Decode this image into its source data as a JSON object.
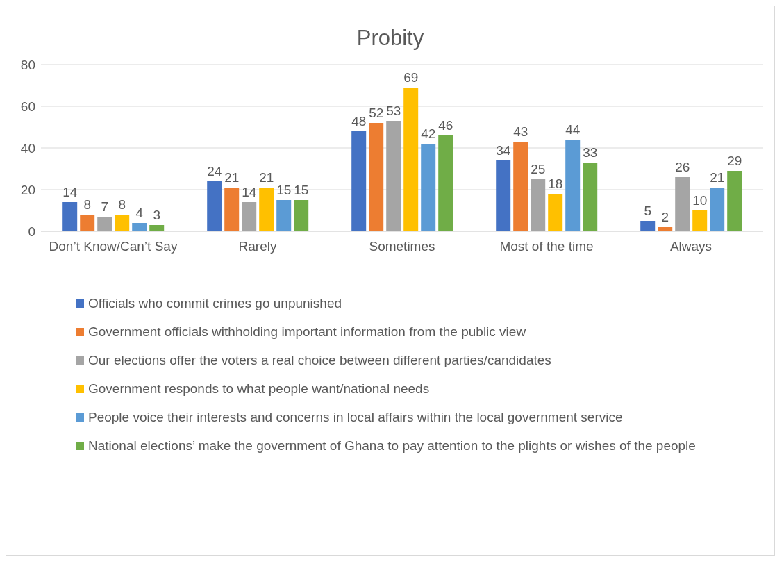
{
  "chart_data": {
    "type": "bar",
    "title": "Probity",
    "categories": [
      "Don’t Know/Can’t Say",
      "Rarely",
      "Sometimes",
      "Most of the time",
      "Always"
    ],
    "series": [
      {
        "name": "Officials who commit crimes go unpunished",
        "color": "#4472c4",
        "values": [
          14,
          24,
          48,
          34,
          5
        ]
      },
      {
        "name": "Government officials withholding important information from the public view",
        "color": "#ed7d31",
        "values": [
          8,
          21,
          52,
          43,
          2
        ]
      },
      {
        "name": "Our elections offer the voters a real choice between different parties/candidates",
        "color": "#a5a5a5",
        "values": [
          7,
          14,
          53,
          25,
          26
        ]
      },
      {
        "name": "Government responds to what people want/national needs",
        "color": "#ffc000",
        "values": [
          8,
          21,
          69,
          18,
          10
        ]
      },
      {
        "name": "People voice their interests and concerns in local affairs within the local government service",
        "color": "#5b9bd5",
        "values": [
          4,
          15,
          42,
          44,
          21
        ]
      },
      {
        "name": "National elections’ make the government of Ghana to pay attention to the plights or wishes of the people",
        "color": "#70ad47",
        "values": [
          3,
          15,
          46,
          33,
          29
        ]
      }
    ],
    "ylim": [
      0,
      80
    ],
    "yticks": [
      0,
      20,
      40,
      60,
      80
    ],
    "grid": "y",
    "legend": "bottom",
    "data_labels": true
  }
}
